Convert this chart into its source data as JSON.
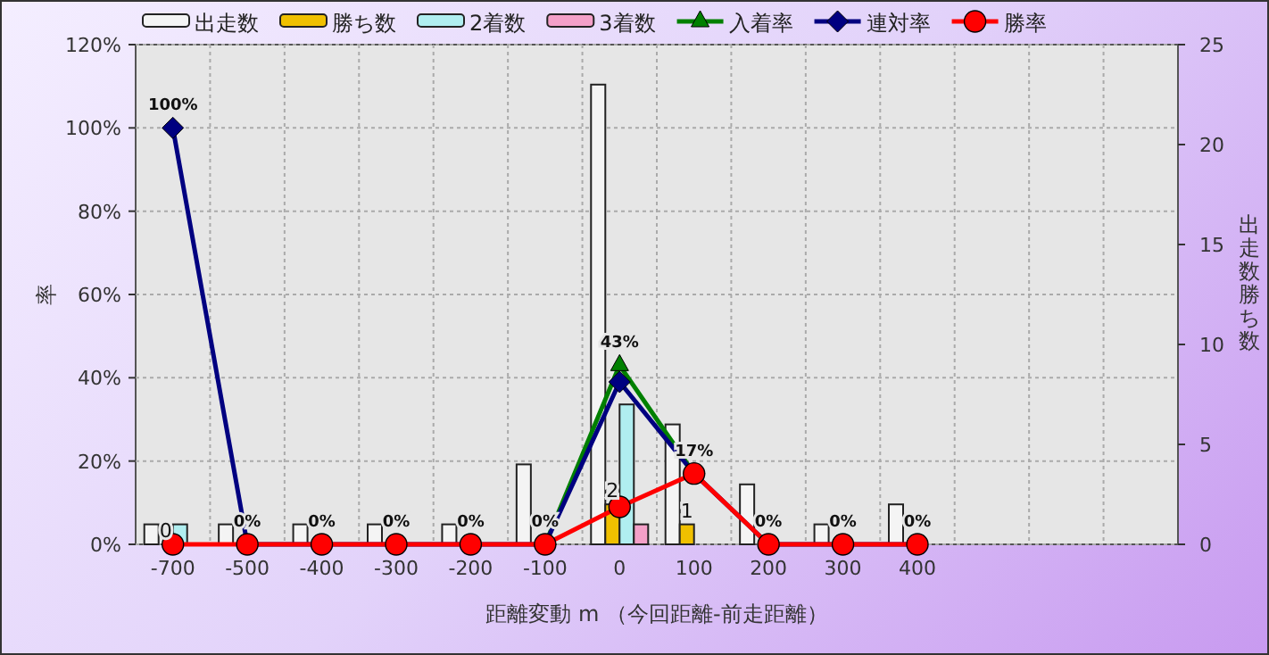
{
  "chart_data": {
    "type": "bar",
    "categories": [
      "-700",
      "-500",
      "-400",
      "-300",
      "-200",
      "-100",
      "0",
      "100",
      "200",
      "300",
      "400",
      null,
      null,
      null
    ],
    "xlabel": "距離変動 m （今回距離-前走距離）",
    "ylabel": "率",
    "y2label": "出走数勝ち数",
    "ylim": [
      0,
      120
    ],
    "yticks": [
      {
        "value": 0,
        "label": "0%"
      },
      {
        "value": 20,
        "label": "20%"
      },
      {
        "value": 40,
        "label": "40%"
      },
      {
        "value": 60,
        "label": "60%"
      },
      {
        "value": 80,
        "label": "80%"
      },
      {
        "value": 100,
        "label": "100%"
      },
      {
        "value": 120,
        "label": "120%"
      }
    ],
    "y2lim": [
      0,
      25
    ],
    "y2ticks": [
      0,
      5,
      10,
      15,
      20,
      25
    ],
    "grid": true,
    "legend": "top",
    "series": [
      {
        "name": "出走数",
        "axis": "y2",
        "color": "#f4f4f4",
        "values": [
          1,
          1,
          1,
          1,
          1,
          4,
          23,
          6,
          3,
          1,
          2,
          null,
          null,
          null
        ]
      },
      {
        "name": "勝ち数",
        "axis": "y2",
        "color": "#f0c000",
        "values": [
          0,
          0,
          0,
          0,
          0,
          0,
          2,
          1,
          0,
          0,
          0,
          null,
          null,
          null
        ],
        "value_labels": [
          "0",
          null,
          null,
          null,
          null,
          null,
          "2",
          "1",
          null,
          null,
          null,
          null,
          null,
          null
        ]
      },
      {
        "name": "2着数",
        "axis": "y2",
        "color": "#b0eef0",
        "values": [
          1,
          0,
          0,
          0,
          0,
          0,
          7,
          0,
          0,
          0,
          0,
          null,
          null,
          null
        ]
      },
      {
        "name": "3着数",
        "axis": "y2",
        "color": "#f4a0c8",
        "values": [
          0,
          0,
          0,
          0,
          0,
          0,
          1,
          0,
          0,
          0,
          0,
          null,
          null,
          null
        ]
      },
      {
        "name": "入着率",
        "type": "line",
        "marker": "triangle",
        "color": "#008000",
        "values": [
          null,
          null,
          null,
          null,
          null,
          0,
          43,
          17,
          null,
          null,
          null,
          null,
          null,
          null
        ],
        "value_labels": [
          null,
          null,
          null,
          null,
          null,
          null,
          "43%",
          null,
          null,
          null,
          null,
          null,
          null,
          null
        ]
      },
      {
        "name": "連対率",
        "type": "line",
        "marker": "diamond",
        "color": "#000080",
        "values": [
          100,
          0,
          0,
          0,
          0,
          0,
          39,
          17,
          0,
          0,
          0,
          null,
          null,
          null
        ],
        "value_labels": [
          "100%",
          null,
          null,
          null,
          null,
          null,
          null,
          null,
          null,
          null,
          null,
          null,
          null,
          null
        ]
      },
      {
        "name": "勝率",
        "type": "line",
        "marker": "circle",
        "color": "#ff0000",
        "values": [
          0,
          0,
          0,
          0,
          0,
          0,
          9,
          17,
          0,
          0,
          0,
          null,
          null,
          null
        ],
        "value_labels": [
          null,
          "0%",
          "0%",
          "0%",
          "0%",
          "0%",
          null,
          "17%",
          "0%",
          "0%",
          "0%",
          null,
          null,
          null
        ]
      }
    ]
  }
}
